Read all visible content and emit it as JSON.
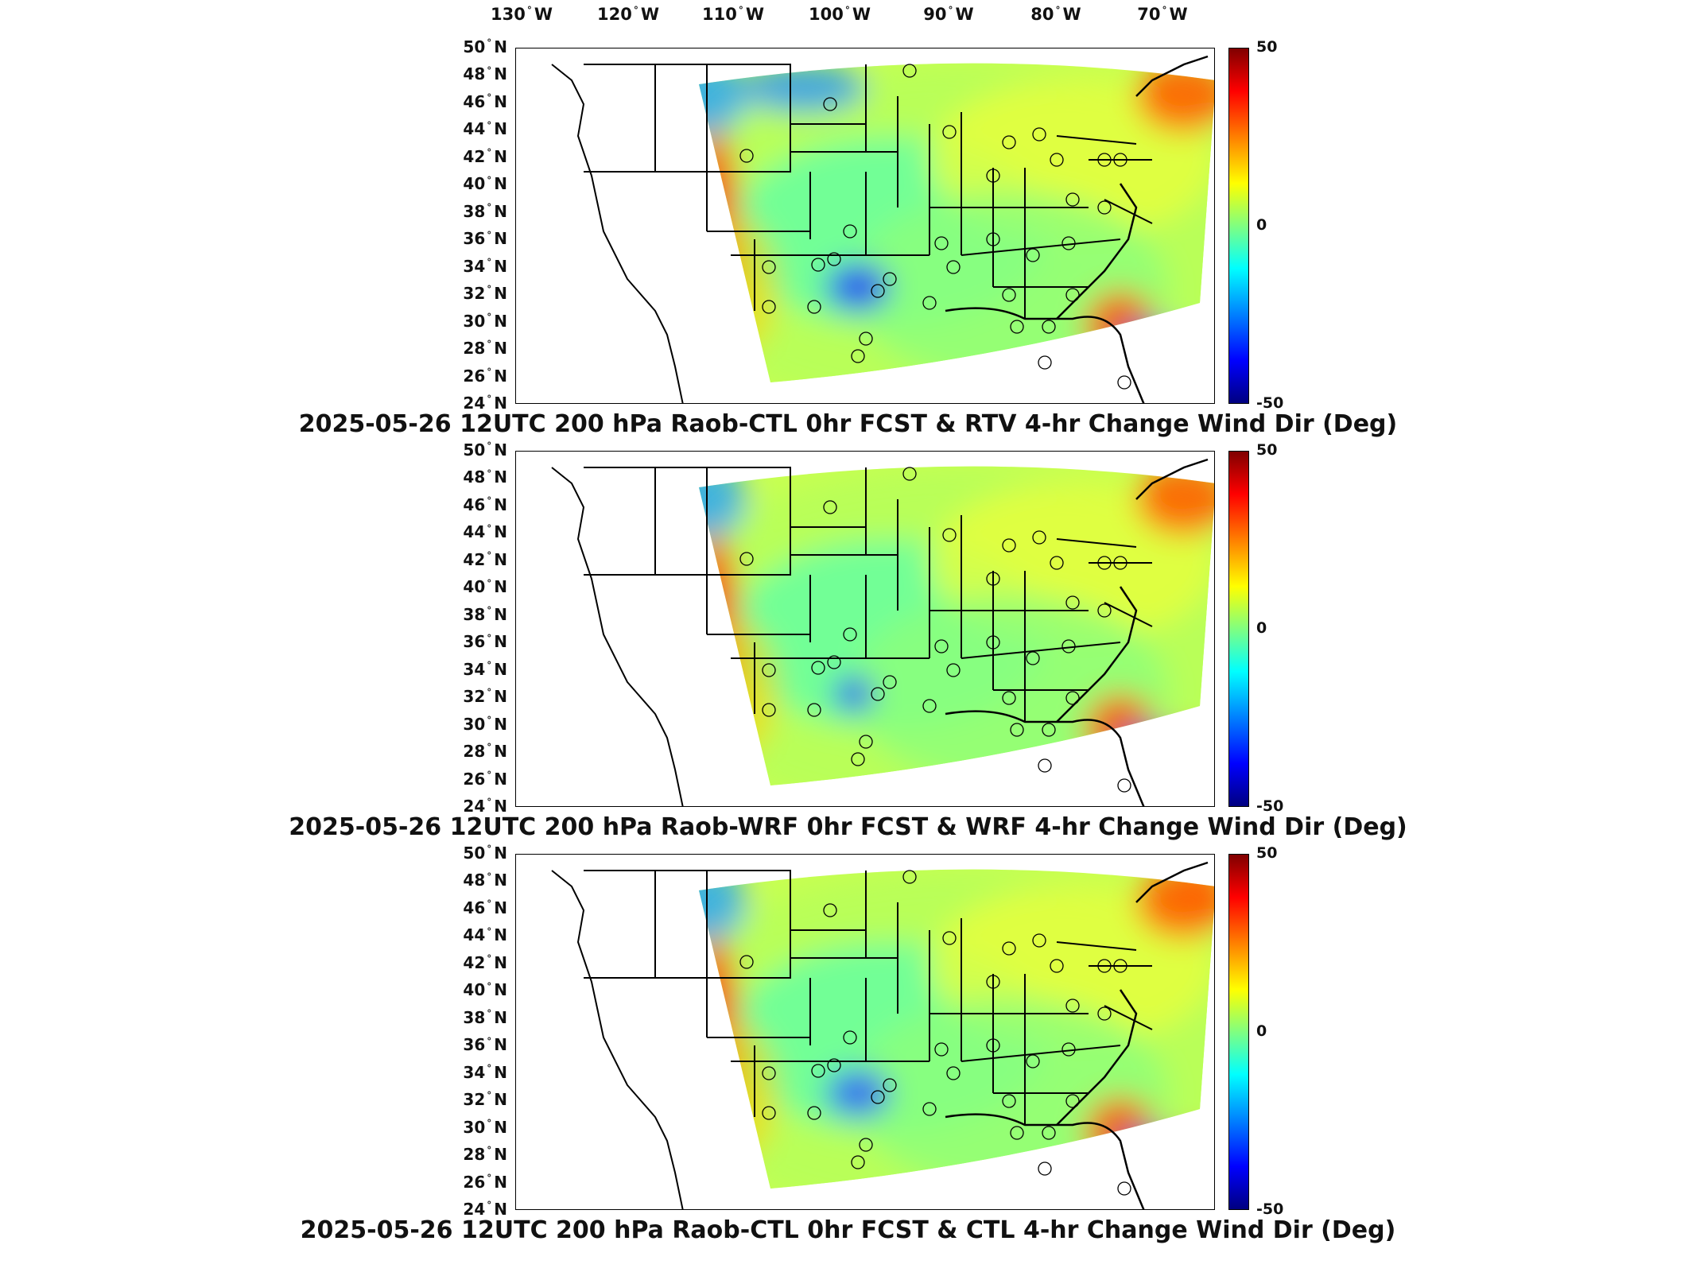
{
  "lon_labels": [
    "130",
    "120",
    "110",
    "100",
    "90",
    "80",
    "70"
  ],
  "lon_suffix": "W",
  "lat_labels": [
    "50",
    "48",
    "46",
    "44",
    "42",
    "40",
    "38",
    "36",
    "34",
    "32",
    "30",
    "28",
    "26",
    "24"
  ],
  "lat_suffix": "N",
  "colorbar": {
    "max": "50",
    "mid": "0",
    "min": "-50",
    "colors": [
      "#800000",
      "#ff0000",
      "#ff8000",
      "#ffff00",
      "#80ff80",
      "#00ffff",
      "#0080ff",
      "#0000ff",
      "#000080"
    ]
  },
  "panels": [
    {
      "title": "2025-05-26 12UTC 200 hPa Raob-CTL 0hr FCST & RTV 4-hr Change Wind Dir (Deg)"
    },
    {
      "title": "2025-05-26 12UTC 200 hPa Raob-WRF 0hr FCST & WRF 4-hr Change Wind Dir (Deg)"
    },
    {
      "title": "2025-05-26 12UTC 200 hPa Raob-CTL 0hr FCST & CTL 4-hr Change Wind Dir (Deg)"
    }
  ]
}
